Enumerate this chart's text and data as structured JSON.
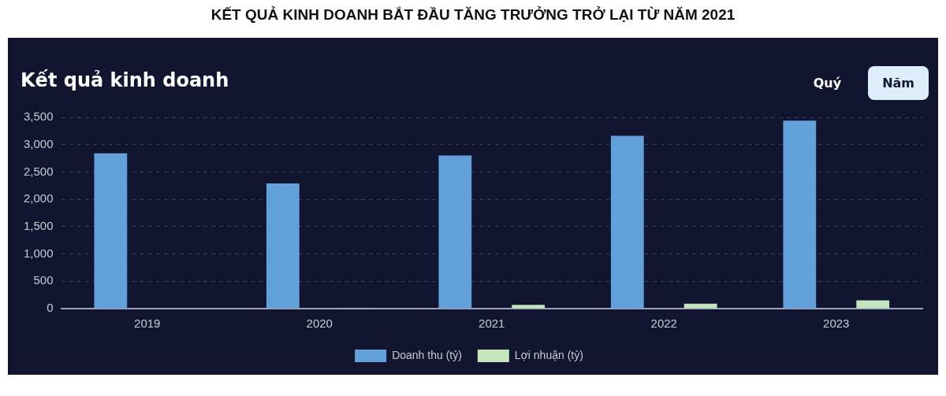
{
  "chart_data": {
    "type": "bar",
    "title": "KẾT QUẢ KINH DOANH BẮT ĐẦU TĂNG TRƯỞNG TRỞ LẠI TỪ NĂM 2021",
    "subtitle": "Kết quả kinh doanh",
    "annotations": [
      "Quý",
      "Năm"
    ],
    "categories": [
      "2019",
      "2020",
      "2021",
      "2022",
      "2023"
    ],
    "series": [
      {
        "name": "Doanh thu (tỷ)",
        "color": "#62a1d9",
        "values": [
          2840,
          2290,
          2800,
          3160,
          3440
        ]
      },
      {
        "name": "Lợi nhuận (tỷ)",
        "color": "#c4e6bd",
        "values": [
          0,
          10,
          70,
          90,
          150
        ]
      }
    ],
    "ylim": [
      0,
      3500
    ],
    "yticks": [
      0,
      500,
      {
        "value": 1000,
        "label": "1,000"
      },
      {
        "value": 1500,
        "label": "1,500"
      },
      {
        "value": 2000,
        "label": "2,000"
      },
      {
        "value": 2500,
        "label": "2,500"
      },
      {
        "value": 3000,
        "label": "3,000"
      },
      {
        "value": 3500,
        "label": "3,500"
      }
    ],
    "grid": "y",
    "legend": "bottom"
  }
}
